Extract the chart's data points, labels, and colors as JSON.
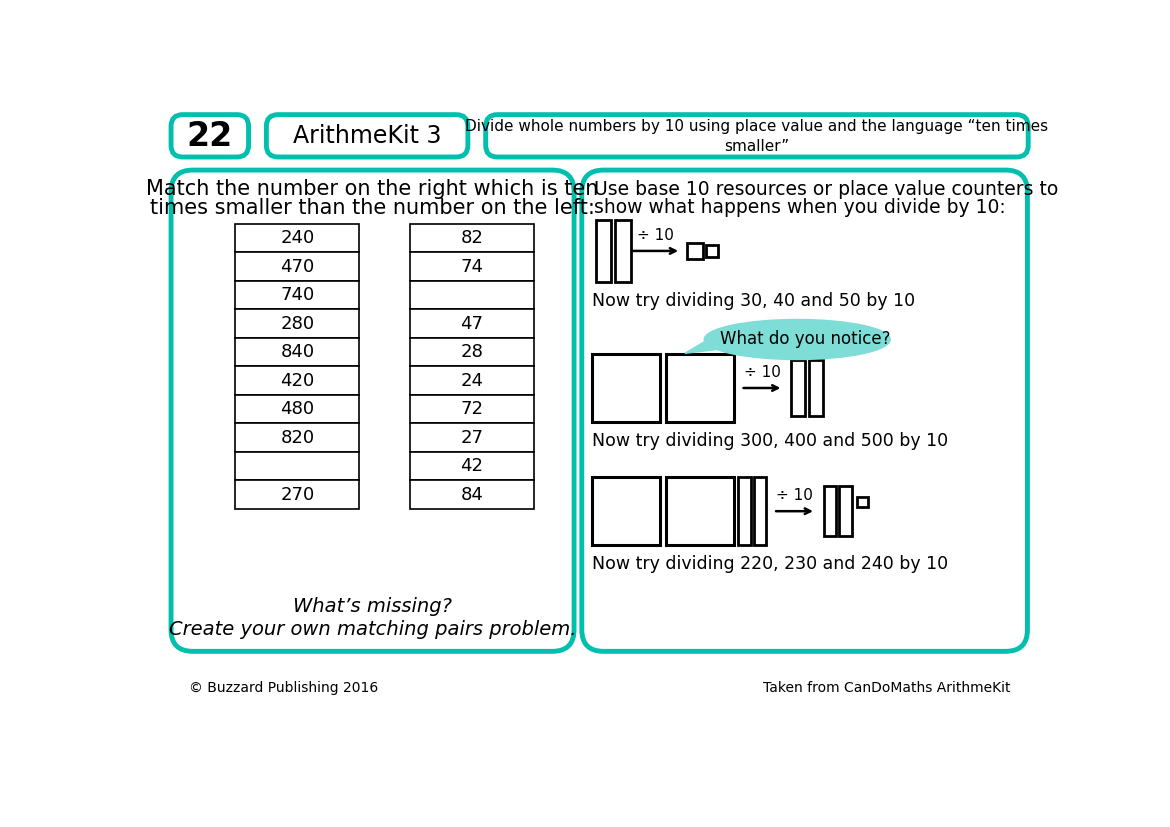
{
  "title_number": "22",
  "title_kit": "ArithmeKit 3",
  "title_desc": "Divide whole numbers by 10 using place value and the language “ten times\nsmaller”",
  "teal": "#00BFAD",
  "black": "#000000",
  "white": "#FFFFFF",
  "left_col_numbers": [
    "240",
    "470",
    "740",
    "280",
    "840",
    "420",
    "480",
    "820",
    "",
    "270"
  ],
  "right_col_numbers": [
    "82",
    "74",
    "",
    "47",
    "28",
    "24",
    "72",
    "27",
    "42",
    "84"
  ],
  "left_header_line1": "Match the number on the right which is ten",
  "left_header_line2": "times smaller than the number on the left:",
  "right_header_line1": "Use base 10 resources or place value counters to",
  "right_header_line2": "show what happens when you divide by 10:",
  "notice_text": "What do you notice?",
  "try1": "Now try dividing 30, 40 and 50 by 10",
  "try2": "Now try dividing 300, 400 and 500 by 10",
  "try3": "Now try dividing 220, 230 and 240 by 10",
  "whats_missing": "What’s missing?",
  "create_own": "Create your own matching pairs problem.",
  "footer_left": "© Buzzard Publishing 2016",
  "footer_right": "Taken from CanDoMaths ArithmeKit",
  "bubble_color": "#7EDDD6"
}
